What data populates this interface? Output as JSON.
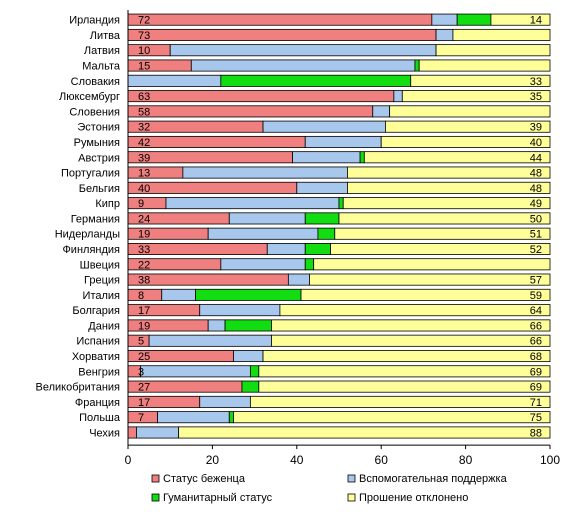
{
  "chart_data": {
    "type": "bar",
    "orientation": "horizontal",
    "stacked": true,
    "xlim": [
      0,
      100
    ],
    "xticks": [
      "0",
      "20",
      "40",
      "60",
      "80",
      "100"
    ],
    "grid": false,
    "legend_position": "bottom",
    "categories": [
      "Ирландия",
      "Литва",
      "Латвия",
      "Мальта",
      "Словакия",
      "Люксембург",
      "Словения",
      "Эстония",
      "Румыния",
      "Австрия",
      "Португалия",
      "Бельгия",
      "Кипр",
      "Германия",
      "Нидерланды",
      "Финляндия",
      "Швеция",
      "Греция",
      "Италия",
      "Болгария",
      "Дания",
      "Испания",
      "Хорватия",
      "Венгрия",
      "Великобритания",
      "Франция",
      "Польша",
      "Чехия"
    ],
    "series": [
      {
        "name": "Статус беженца",
        "color": "#f08080",
        "values": [
          72,
          73,
          10,
          15,
          0,
          63,
          58,
          32,
          42,
          39,
          13,
          40,
          9,
          24,
          19,
          33,
          22,
          38,
          8,
          17,
          19,
          5,
          25,
          3,
          27,
          17,
          7,
          2
        ],
        "labels": [
          "72",
          "73",
          "10",
          "15",
          "",
          "63",
          "58",
          "32",
          "42",
          "39",
          "13",
          "40",
          "9",
          "24",
          "19",
          "33",
          "22",
          "38",
          "8",
          "17",
          "19",
          "5",
          "25",
          "3",
          "27",
          "17",
          "7",
          ""
        ]
      },
      {
        "name": "Вспомогательная поддержка",
        "color": "#a7c7ed",
        "values": [
          6,
          4,
          63,
          53,
          22,
          2,
          4,
          29,
          18,
          16,
          39,
          12,
          41,
          18,
          26,
          9,
          20,
          5,
          8,
          19,
          4,
          29,
          7,
          26,
          0,
          12,
          17,
          10
        ],
        "labels": []
      },
      {
        "name": "Гуманитарный статус",
        "color": "#11dd11",
        "values": [
          8,
          0,
          0,
          1,
          45,
          0,
          0,
          0,
          0,
          1,
          0,
          0,
          1,
          8,
          4,
          6,
          2,
          0,
          25,
          0,
          11,
          0,
          0,
          2,
          4,
          0,
          1,
          0
        ],
        "labels": []
      },
      {
        "name": "Прошение отклонено",
        "color": "#ffff99",
        "values": [
          14,
          23,
          27,
          31,
          33,
          35,
          38,
          39,
          40,
          44,
          48,
          48,
          49,
          50,
          51,
          52,
          56,
          57,
          59,
          64,
          66,
          66,
          68,
          69,
          69,
          71,
          75,
          88
        ],
        "labels": [
          "14",
          "",
          "",
          "",
          "33",
          "35",
          "",
          "39",
          "40",
          "44",
          "48",
          "48",
          "49",
          "50",
          "51",
          "52",
          "",
          "57",
          "59",
          "64",
          "66",
          "66",
          "68",
          "69",
          "69",
          "71",
          "75",
          "88"
        ]
      }
    ]
  }
}
